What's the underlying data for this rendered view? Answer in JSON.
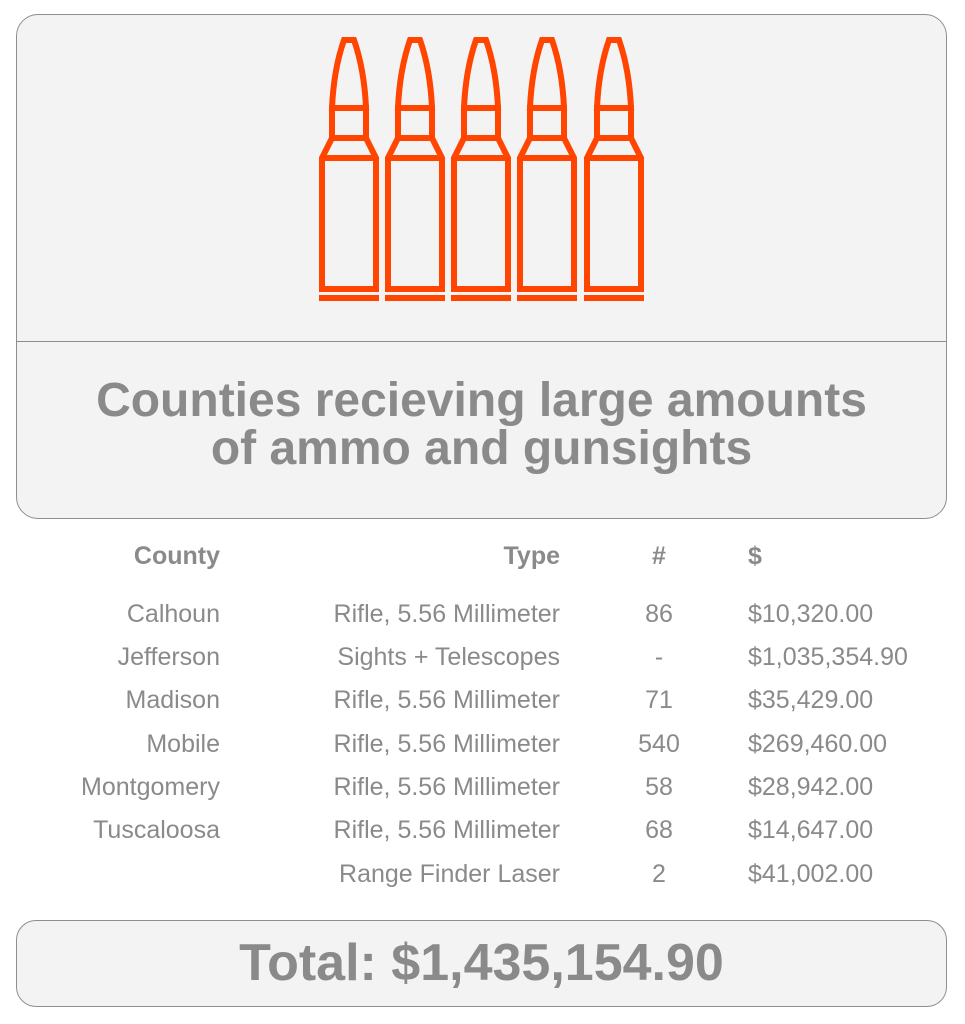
{
  "header": {
    "icon": "bullets-icon",
    "icon_color": "#ff4500",
    "title_line1": "Counties recieving large amounts",
    "title_line2": "of ammo and gunsights"
  },
  "table": {
    "columns": [
      "County",
      "Type",
      "#",
      "$"
    ],
    "rows": [
      {
        "county": "Calhoun",
        "type": "Rifle, 5.56 Millimeter",
        "count": "86",
        "amount": "$10,320.00"
      },
      {
        "county": "Jefferson",
        "type": "Sights + Telescopes",
        "count": "-",
        "amount": "$1,035,354.90"
      },
      {
        "county": "Madison",
        "type": "Rifle, 5.56 Millimeter",
        "count": "71",
        "amount": "$35,429.00"
      },
      {
        "county": "Mobile",
        "type": "Rifle, 5.56 Millimeter",
        "count": "540",
        "amount": "$269,460.00"
      },
      {
        "county": "Montgomery",
        "type": "Rifle, 5.56 Millimeter",
        "count": "58",
        "amount": "$28,942.00"
      },
      {
        "county": "Tuscaloosa",
        "type": "Rifle, 5.56 Millimeter",
        "count": "68",
        "amount": "$14,647.00"
      },
      {
        "county": "",
        "type": "Range Finder Laser",
        "count": "2",
        "amount": "$41,002.00"
      }
    ]
  },
  "total": {
    "label": "Total: $1,435,154.90"
  },
  "colors": {
    "text": "#8a8a8a",
    "card_background": "#f3f3f3",
    "border": "#8e8e8e",
    "accent": "#ff4500"
  }
}
